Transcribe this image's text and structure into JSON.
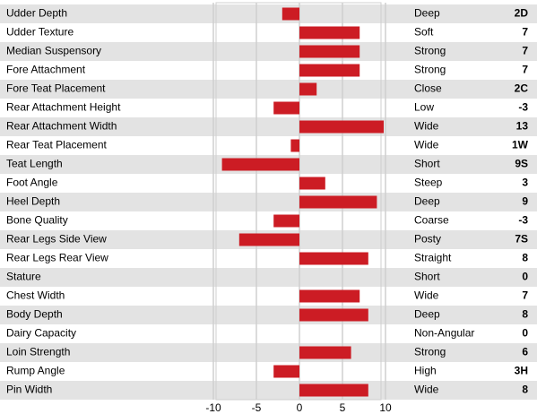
{
  "chart_data": {
    "type": "bar",
    "orientation": "horizontal",
    "categories": [
      "Udder Depth",
      "Udder Texture",
      "Median Suspensory",
      "Fore Attachment",
      "Fore Teat Placement",
      "Rear Attachment Height",
      "Rear Attachment Width",
      "Rear Teat Placement",
      "Teat Length",
      "Foot Angle",
      "Heel Depth",
      "Bone Quality",
      "Rear Legs Side View",
      "Rear Legs Rear View",
      "Stature",
      "Chest Width",
      "Body Depth",
      "Dairy Capacity",
      "Loin Strength",
      "Rump Angle",
      "Pin Width"
    ],
    "values": [
      -2,
      7,
      7,
      7,
      2,
      -3,
      13,
      -1,
      -9,
      3,
      9,
      -3,
      -7,
      8,
      0,
      7,
      8,
      0,
      6,
      -3,
      8
    ],
    "value_labels": [
      "2D",
      "7",
      "7",
      "7",
      "2C",
      "-3",
      "13",
      "1W",
      "9S",
      "3",
      "9",
      "-3",
      "7S",
      "8",
      "0",
      "7",
      "8",
      "0",
      "6",
      "3H",
      "8"
    ],
    "descriptors": [
      "Deep",
      "Soft",
      "Strong",
      "Strong",
      "Close",
      "Low",
      "Wide",
      "Wide",
      "Short",
      "Steep",
      "Deep",
      "Coarse",
      "Posty",
      "Straight",
      "Short",
      "Wide",
      "Deep",
      "Non-Angular",
      "Strong",
      "High",
      "Wide"
    ],
    "color": "#cc1c24",
    "xlim": [
      -10,
      10
    ],
    "xticks": [
      -10,
      -5,
      0,
      5,
      10
    ],
    "grid": true
  }
}
